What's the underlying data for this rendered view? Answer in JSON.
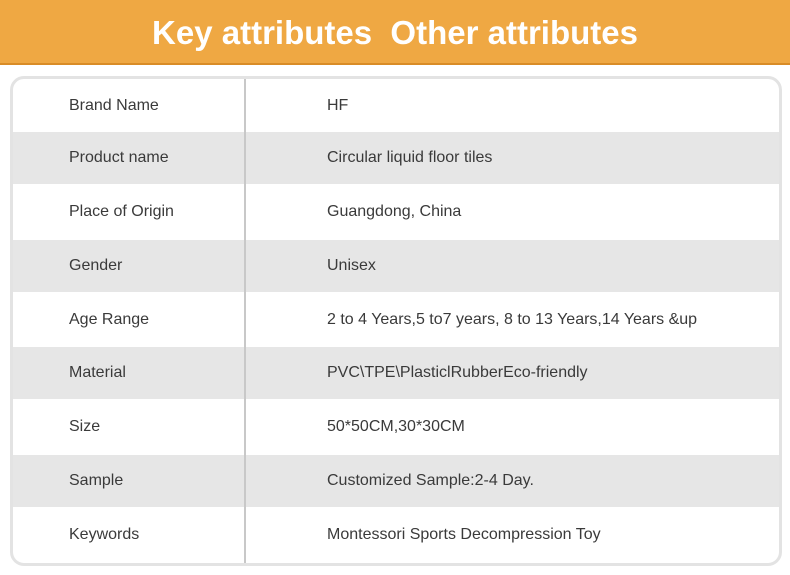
{
  "header": {
    "title": "Key attributes  Other attributes"
  },
  "attributes": [
    {
      "label": "Brand Name",
      "value": "HF"
    },
    {
      "label": "Product name",
      "value": "Circular liquid floor tiles"
    },
    {
      "label": "Place of Origin",
      "value": "Guangdong, China"
    },
    {
      "label": "Gender",
      "value": "Unisex"
    },
    {
      "label": "Age Range",
      "value": "2 to 4 Years,5 to7 years, 8 to 13 Years,14 Years &up"
    },
    {
      "label": "Material",
      "value": "PVC\\TPE\\PlasticlRubberEco-friendly"
    },
    {
      "label": "Size",
      "value": "50*50CM,30*30CM"
    },
    {
      "label": "Sample",
      "value": "Customized Sample:2-4 Day."
    },
    {
      "label": "Keywords",
      "value": "Montessori Sports Decompression Toy"
    }
  ],
  "colors": {
    "header": "#efa843",
    "row_alt": "#e6e6e6"
  }
}
